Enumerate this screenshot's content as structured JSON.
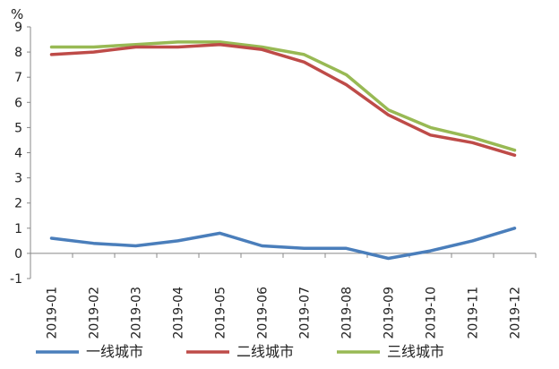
{
  "chart_data": {
    "type": "line",
    "ylabel": "%",
    "ylim": [
      -1,
      9
    ],
    "yticks": [
      "-1",
      "0",
      "1",
      "2",
      "3",
      "4",
      "5",
      "6",
      "7",
      "8",
      "9"
    ],
    "categories": [
      "2019-01",
      "2019-02",
      "2019-03",
      "2019-04",
      "2019-05",
      "2019-06",
      "2019-07",
      "2019-08",
      "2019-09",
      "2019-10",
      "2019-11",
      "2019-12"
    ],
    "grid": false,
    "legend": "bottom",
    "series": [
      {
        "name": "一线城市",
        "color": "#4a7ebb",
        "values": [
          0.6,
          0.4,
          0.3,
          0.5,
          0.8,
          0.3,
          0.2,
          0.2,
          -0.2,
          0.1,
          0.5,
          1.0
        ]
      },
      {
        "name": "二线城市",
        "color": "#be4b48",
        "values": [
          7.9,
          8.0,
          8.2,
          8.2,
          8.3,
          8.1,
          7.6,
          6.7,
          5.5,
          4.7,
          4.4,
          3.9
        ]
      },
      {
        "name": "三线城市",
        "color": "#98b954",
        "values": [
          8.2,
          8.2,
          8.3,
          8.4,
          8.4,
          8.2,
          7.9,
          7.1,
          5.7,
          5.0,
          4.6,
          4.1
        ]
      }
    ]
  }
}
